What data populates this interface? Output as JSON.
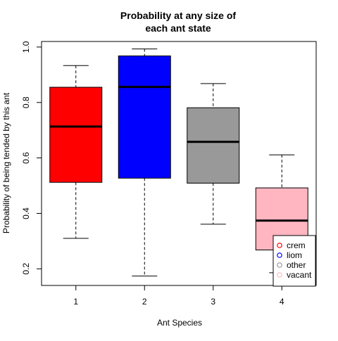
{
  "chart_data": {
    "type": "box",
    "title_lines": [
      "Probability at any size of",
      "each ant state"
    ],
    "xlabel": "Ant Species",
    "ylabel": "Probability of being tended by this ant",
    "categories": [
      "1",
      "2",
      "3",
      "4"
    ],
    "boxes": [
      {
        "whisker_low": 0.31,
        "q1": 0.512,
        "median": 0.713,
        "q3": 0.855,
        "whisker_high": 0.933,
        "color": "#ff0000"
      },
      {
        "whisker_low": 0.174,
        "q1": 0.527,
        "median": 0.856,
        "q3": 0.968,
        "whisker_high": 0.993,
        "color": "#0000ff"
      },
      {
        "whisker_low": 0.361,
        "q1": 0.509,
        "median": 0.658,
        "q3": 0.781,
        "whisker_high": 0.868,
        "color": "#999999"
      },
      {
        "whisker_low": 0.186,
        "q1": 0.268,
        "median": 0.374,
        "q3": 0.492,
        "whisker_high": 0.611,
        "color": "#ffb6c1"
      }
    ],
    "y_ticks": [
      "0.2",
      "0.4",
      "0.6",
      "0.8",
      "1.0"
    ],
    "ylim": [
      0.14,
      1.02
    ],
    "xlim": [
      0.5,
      4.5
    ],
    "legend": {
      "position": "bottom-right",
      "entries": [
        {
          "label": "crem",
          "color": "#ff0000"
        },
        {
          "label": "liom",
          "color": "#0000ff"
        },
        {
          "label": "other",
          "color": "#999999"
        },
        {
          "label": "vacant",
          "color": "#ffb6c1"
        }
      ]
    },
    "grid": false
  }
}
